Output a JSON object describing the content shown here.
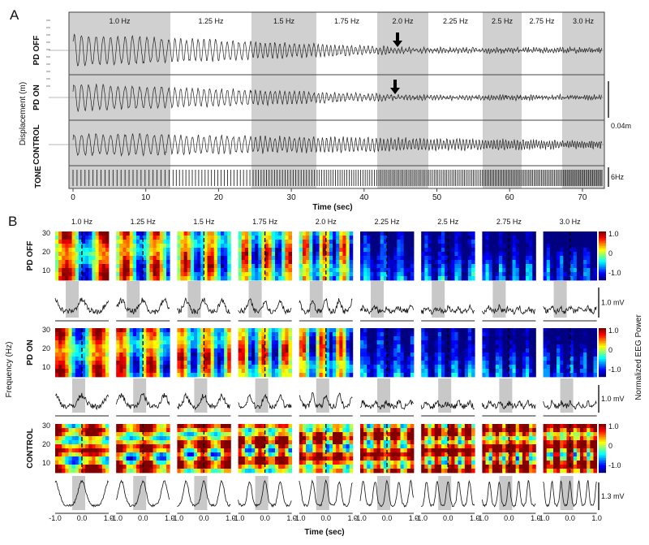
{
  "panel_a": {
    "label": "A",
    "frequencies": [
      "1.0 Hz",
      "1.25 Hz",
      "1.5 Hz",
      "1.75 Hz",
      "2.0 Hz",
      "2.25 Hz",
      "2.5 Hz",
      "2.75 Hz",
      "3.0 Hz"
    ],
    "rows": [
      "PD OFF",
      "PD ON",
      "CONTROL",
      "TONE"
    ],
    "y_label": "Displacement (m)",
    "x_label": "Time (sec)",
    "x_ticks": [
      "0",
      "10",
      "20",
      "30",
      "40",
      "50",
      "60",
      "70"
    ],
    "scale_bar": "0.04m",
    "tone_rate": "6Hz"
  },
  "panel_b": {
    "label": "B",
    "frequencies": [
      "1.0 Hz",
      "1.25 Hz",
      "1.5 Hz",
      "1.75 Hz",
      "2.0 Hz",
      "2.25 Hz",
      "2.5 Hz",
      "2.75 Hz",
      "3.0 Hz"
    ],
    "rows": [
      {
        "name": "PD OFF",
        "scale": "1.0 mV"
      },
      {
        "name": "PD ON",
        "scale": "1.0 mV"
      },
      {
        "name": "CONTROL",
        "scale": "1.3 mV"
      }
    ],
    "y_ticks": [
      "30",
      "20",
      "10"
    ],
    "colorbar_ticks": [
      "1.0",
      "0",
      "-1.0"
    ],
    "colorbar_label": "Normalized  EEG Power",
    "y_label": "Frequency (Hz)",
    "x_ticks": [
      "-1.0",
      "0.0",
      "1.0"
    ],
    "x_label": "Time (sec)"
  }
}
